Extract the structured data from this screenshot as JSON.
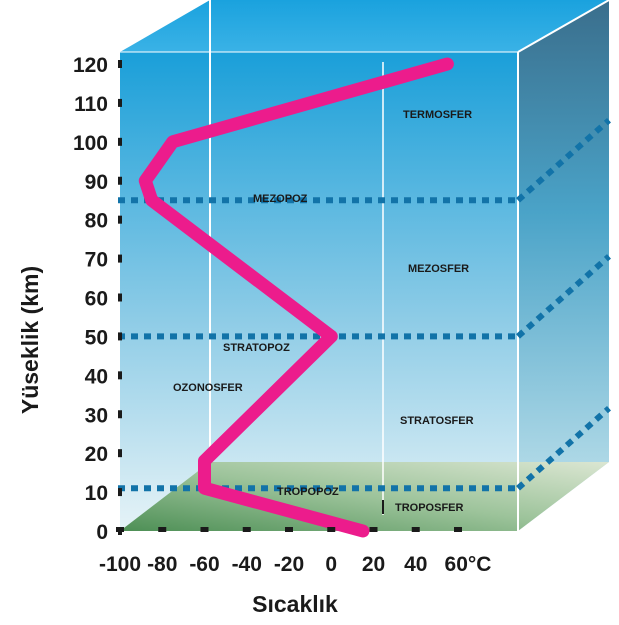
{
  "chart_data": {
    "type": "line",
    "title": "",
    "xlabel": "Sıcaklık",
    "ylabel": "Yüseklik (km)",
    "x_ticks": [
      "-100",
      "-80",
      "-60",
      "-40",
      "-20",
      "0",
      "20",
      "40",
      "60°C"
    ],
    "y_ticks": [
      "0",
      "10",
      "20",
      "30",
      "40",
      "50",
      "60",
      "70",
      "80",
      "90",
      "100",
      "110",
      "120"
    ],
    "xlim": [
      -100,
      60
    ],
    "ylim": [
      0,
      120
    ],
    "series": [
      {
        "x": [
          15,
          -60,
          -60,
          0,
          -85,
          -88,
          -75,
          55
        ],
        "y": [
          0,
          11,
          18,
          50,
          85,
          90,
          100,
          120
        ]
      }
    ],
    "layer_labels": [
      {
        "text": "TERMOSFER",
        "id": "termosfer"
      },
      {
        "text": "MEZOPOZ",
        "id": "mezopoz"
      },
      {
        "text": "MEZOSFER",
        "id": "mezosfer"
      },
      {
        "text": "STRATOPOZ",
        "id": "stratopoz"
      },
      {
        "text": "OZONOSFER",
        "id": "ozonosfer"
      },
      {
        "text": "STRATOSFER",
        "id": "stratosfer"
      },
      {
        "text": "TROPOPOZ",
        "id": "tropopoz"
      },
      {
        "text": "TROPOSFER",
        "id": "troposfer"
      }
    ],
    "boundaries_km": [
      11,
      50,
      85
    ],
    "colors": {
      "temperature_curve": "#ec1c8c",
      "sky_top": "#1aa0dc",
      "sky_bottom": "#d8eef6",
      "ground": "#5a9a62",
      "boundary_dots": "#1273a8"
    }
  }
}
